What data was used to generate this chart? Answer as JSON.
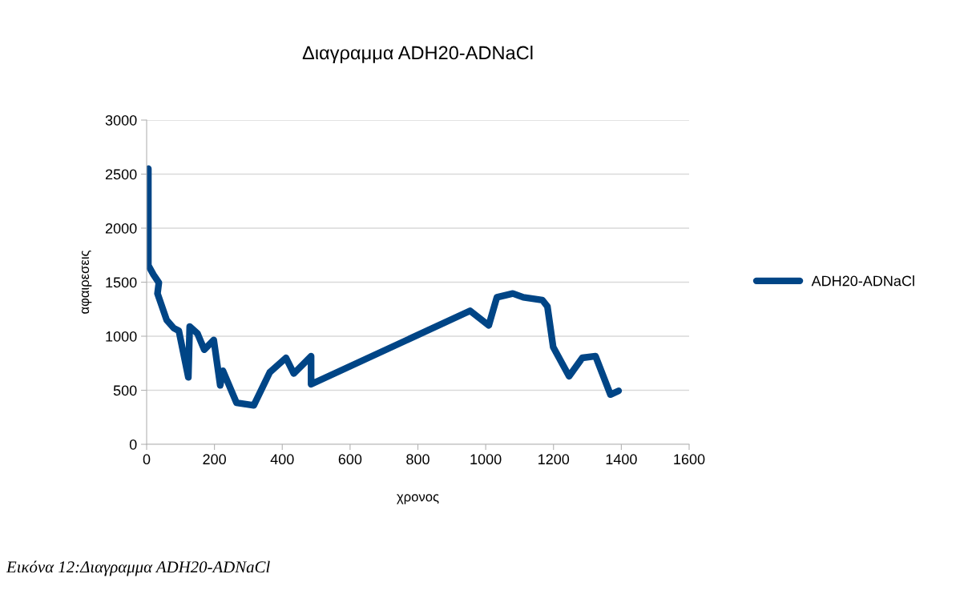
{
  "chart_data": {
    "type": "line",
    "title": "Διαγραμμα ADH20-ADNaCl",
    "xlabel": "χρονος",
    "ylabel": "αφαιρεσεις",
    "annotations": [
      "Εικόνα 12:Διαγραμμα ADH20-ADNaCl"
    ],
    "series": [
      {
        "name": "ADH20-ADNaCl",
        "color": "#004586",
        "x": [
          5,
          5,
          20,
          36,
          32,
          59,
          80,
          95,
          123,
          127,
          150,
          170,
          198,
          217,
          225,
          265,
          316,
          363,
          411,
          434,
          485,
          485,
          954,
          1009,
          1033,
          1080,
          1111,
          1167,
          1182,
          1199,
          1246,
          1285,
          1324,
          1368,
          1392
        ],
        "values": [
          2550,
          1655,
          1570,
          1495,
          1395,
          1150,
          1075,
          1050,
          620,
          1090,
          1025,
          875,
          965,
          545,
          680,
          385,
          360,
          665,
          800,
          655,
          815,
          555,
          1235,
          1100,
          1360,
          1395,
          1360,
          1335,
          1275,
          900,
          630,
          800,
          815,
          460,
          495
        ]
      }
    ],
    "xlim": [
      0,
      1600
    ],
    "xticks": [
      0,
      200,
      400,
      600,
      800,
      1000,
      1200,
      1400,
      1600
    ],
    "ylim": [
      0,
      3000
    ],
    "yticks": [
      0,
      500,
      1000,
      1500,
      2000,
      2500,
      3000
    ],
    "grid": "y",
    "legend": "right",
    "marker": "none",
    "line_style": "solid"
  }
}
